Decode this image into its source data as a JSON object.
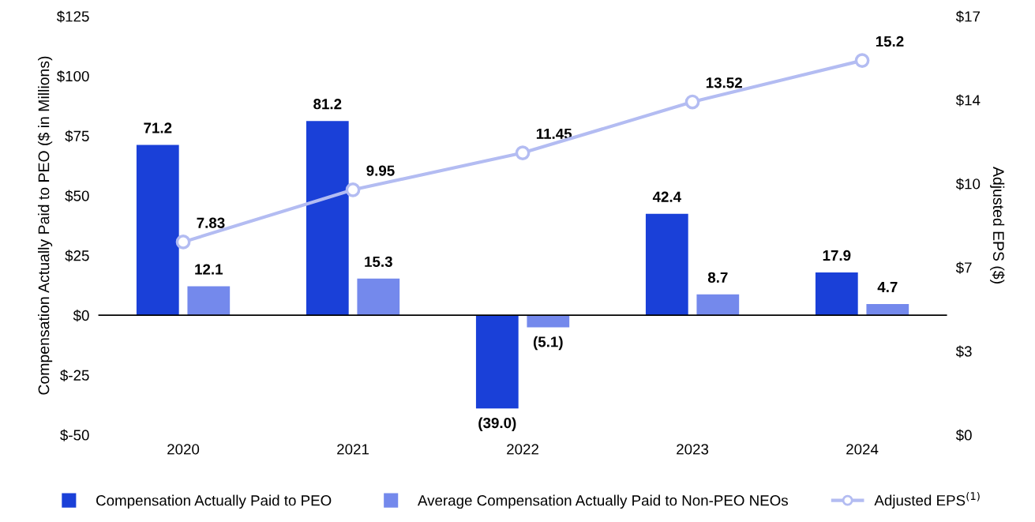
{
  "chart_data": {
    "type": "bar",
    "categories": [
      "2020",
      "2021",
      "2022",
      "2023",
      "2024"
    ],
    "ylabel": "Compensation Actually Paid to PEO ($ in Millions)",
    "y2label": "Adjusted EPS ($)",
    "ylim": [
      -50,
      125
    ],
    "yticks": [
      {
        "value": -50,
        "label": "$-50"
      },
      {
        "value": -25,
        "label": "$-25"
      },
      {
        "value": 0,
        "label": "$0"
      },
      {
        "value": 25,
        "label": "$25"
      },
      {
        "value": 50,
        "label": "$50"
      },
      {
        "value": 75,
        "label": "$75"
      },
      {
        "value": 100,
        "label": "$100"
      },
      {
        "value": 125,
        "label": "$125"
      }
    ],
    "y2lim": [
      0,
      17
    ],
    "y2ticks": [
      {
        "value": 0,
        "label": "$0"
      },
      {
        "value": 3.4,
        "label": "$3"
      },
      {
        "value": 6.8,
        "label": "$7"
      },
      {
        "value": 10.2,
        "label": "$10"
      },
      {
        "value": 13.6,
        "label": "$14"
      },
      {
        "value": 17,
        "label": "$17"
      }
    ],
    "series": [
      {
        "name": "Compensation Actually Paid to PEO",
        "color": "#1a40d8",
        "values": [
          71.2,
          81.2,
          -39.0,
          42.4,
          17.9
        ],
        "value_labels": [
          "71.2",
          "81.2",
          "(39.0)",
          "42.4",
          "17.9"
        ]
      },
      {
        "name": "Average Compensation Actually Paid to Non-PEO NEOs",
        "color": "#7489ec",
        "values": [
          12.1,
          15.3,
          -5.1,
          8.7,
          4.7
        ],
        "value_labels": [
          "12.1",
          "15.3",
          "(5.1)",
          "8.7",
          "4.7"
        ]
      },
      {
        "name": "Adjusted EPS$^{(1)}$",
        "type": "line",
        "axis": "y2",
        "color": "#b3bcf2",
        "marker": "circle",
        "values": [
          7.83,
          9.95,
          11.45,
          13.52,
          15.2
        ],
        "value_labels": [
          "7.83",
          "9.95",
          "11.45",
          "13.52",
          "15.2"
        ]
      }
    ],
    "ref_lines": [
      {
        "axis": "y",
        "value": 0,
        "color": "#000000"
      }
    ],
    "grid": false,
    "legend": "bottom"
  }
}
